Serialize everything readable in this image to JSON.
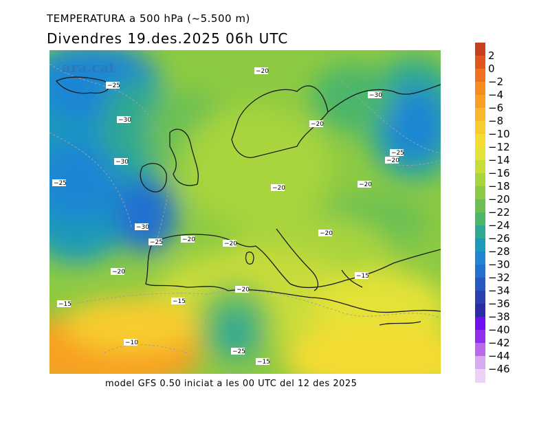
{
  "header": {
    "title": "TEMPERATURA a 500 hPa (~5.500 m)",
    "date_line": "Divendres  19.des.2025 06h UTC"
  },
  "footer": {
    "model_info": "model GFS 0.50 iniciat a les 00 UTC del 12 des 2025"
  },
  "watermark": "ara.cat",
  "colorbar": {
    "labels": [
      "2",
      "0",
      "−2",
      "−4",
      "−6",
      "−8",
      "−10",
      "−12",
      "−14",
      "−16",
      "−18",
      "−20",
      "−22",
      "−24",
      "−26",
      "−28",
      "−30",
      "−32",
      "−34",
      "−36",
      "−38",
      "−40",
      "−42",
      "−44",
      "−46"
    ],
    "colors": [
      "#c8401e",
      "#e0561e",
      "#f0701e",
      "#f68c1e",
      "#f8a024",
      "#f9b82a",
      "#f8cc2e",
      "#f5dc32",
      "#e3e238",
      "#c8dc3a",
      "#a8d43e",
      "#8cca42",
      "#6cc052",
      "#4cb66a",
      "#2ea892",
      "#1c9ab8",
      "#1e86d4",
      "#2470d0",
      "#2858c0",
      "#2a40b0",
      "#2c2ca6",
      "#7010f0",
      "#9030ee",
      "#b868ea",
      "#d8a8f0",
      "#ecd0f6"
    ]
  },
  "contour_labels": [
    {
      "text": "−20"
    },
    {
      "text": "−25"
    },
    {
      "text": "−30"
    },
    {
      "text": "−30"
    },
    {
      "text": "−20"
    },
    {
      "text": "−25"
    },
    {
      "text": "−20"
    },
    {
      "text": "−30"
    },
    {
      "text": "−25"
    },
    {
      "text": "−20"
    },
    {
      "text": "−20"
    },
    {
      "text": "−20"
    },
    {
      "text": "−30"
    },
    {
      "text": "−25"
    },
    {
      "text": "−20"
    },
    {
      "text": "−20"
    },
    {
      "text": "−20"
    },
    {
      "text": "−20"
    },
    {
      "text": "−15"
    },
    {
      "text": "−15"
    },
    {
      "text": "−15"
    },
    {
      "text": "−10"
    },
    {
      "text": "−25"
    },
    {
      "text": "−15"
    }
  ]
}
